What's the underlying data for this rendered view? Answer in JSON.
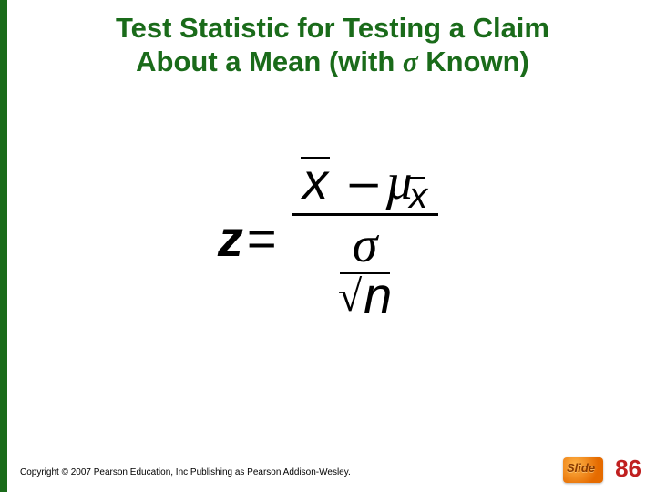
{
  "title": {
    "line1": "Test Statistic for Testing a Claim",
    "line2_prefix": "About a Mean  (with ",
    "sigma": "σ",
    "line2_suffix": " Known)",
    "color": "#1a6b1a",
    "fontsize": 31
  },
  "formula": {
    "lhs_var": "z",
    "equals": "=",
    "numerator": {
      "xbar": "x",
      "minus": "–",
      "mu": "µ",
      "sub_xbar": "x"
    },
    "denominator": {
      "sigma": "σ",
      "radical": "√",
      "n": "n"
    },
    "fontsize": 56,
    "color": "#000000"
  },
  "leftbar_color": "#1a6b1a",
  "footer": {
    "copyright": "Copyright © 2007 Pearson Education, Inc Publishing as Pearson Addison-Wesley.",
    "slide_label": "Slide",
    "slide_number": "86",
    "badge_gradient_from": "#ffb347",
    "badge_gradient_to": "#e56b00",
    "number_color": "#c02020"
  }
}
